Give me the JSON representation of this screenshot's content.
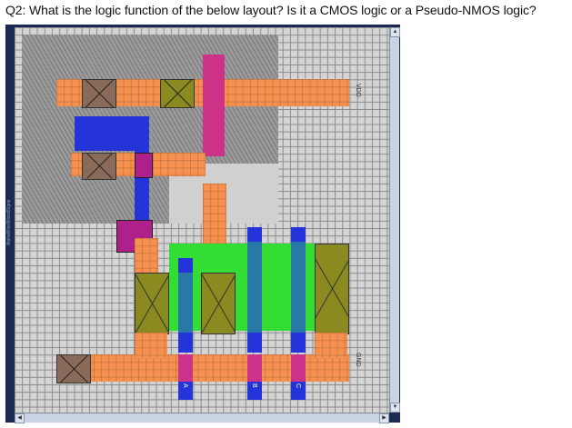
{
  "question": "Q2: What is the logic function of the below layout? Is it a CMOS logic or a Pseudo-NMOS logic?",
  "labels": {
    "vdd": "VDD",
    "gnd": "GND",
    "a": "A",
    "b": "B",
    "c": "C",
    "side": "AlphaWire/MixedSignal"
  },
  "colors": {
    "metal": "#f5904f",
    "poly": "#cc3388",
    "diffusion": "#33dd33",
    "metal2": "#2434d8",
    "nwell": "#9a9a9a",
    "background": "#d4d4d4"
  }
}
